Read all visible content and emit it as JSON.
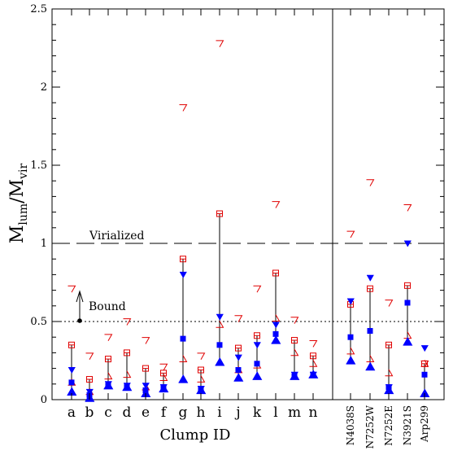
{
  "chart_data": {
    "type": "scatter",
    "xlabel": "Clump ID",
    "ylabel": {
      "main_1": "M",
      "sub_1": "lum",
      "slash": "/M",
      "sub_2": "vir"
    },
    "ylim": [
      0,
      2.5
    ],
    "yticks": [
      "0",
      "0.5",
      "1",
      "1.5",
      "2",
      "2.5"
    ],
    "categories": [
      "a",
      "b",
      "c",
      "d",
      "e",
      "f",
      "g",
      "h",
      "i",
      "j",
      "k",
      "l",
      "m",
      "n",
      "N4038S",
      "N7252W",
      "N7252E",
      "N3921S",
      "Arp299"
    ],
    "reference_lines": [
      {
        "label": "Virialized",
        "y": 1.0,
        "style": "dashed"
      },
      {
        "label": "Bound",
        "y": 0.5,
        "style": "dotted"
      }
    ],
    "colors": {
      "open_markers": "#e00000",
      "filled_markers": "#0000ff",
      "lines": "#000000"
    },
    "series": [
      {
        "marker": "open-down-triangle",
        "values": [
          0.71,
          0.28,
          0.4,
          0.5,
          0.38,
          0.21,
          1.87,
          0.28,
          2.28,
          0.52,
          0.71,
          1.25,
          0.51,
          0.36,
          1.06,
          1.39,
          0.62,
          1.23,
          0.23
        ]
      },
      {
        "marker": "open-square",
        "values": [
          0.35,
          0.13,
          0.26,
          0.3,
          0.2,
          0.17,
          0.9,
          0.19,
          1.19,
          0.33,
          0.41,
          0.81,
          0.38,
          0.28,
          0.61,
          0.71,
          0.35,
          0.73,
          0.23
        ]
      },
      {
        "marker": "open-up-triangle",
        "values": [
          0.11,
          0.05,
          0.15,
          0.16,
          0.08,
          0.14,
          0.26,
          0.13,
          0.48,
          0.19,
          0.22,
          0.52,
          0.3,
          0.23,
          0.31,
          0.26,
          0.17,
          0.41,
          0.23
        ]
      },
      {
        "marker": "filled-down-triangle",
        "values": [
          0.19,
          0.05,
          0.1,
          0.09,
          0.09,
          0.08,
          0.8,
          0.07,
          0.53,
          0.27,
          0.35,
          0.48,
          0.16,
          0.16,
          0.63,
          0.78,
          0.08,
          1.0,
          0.33
        ]
      },
      {
        "marker": "filled-square",
        "values": [
          0.11,
          0.03,
          0.09,
          0.08,
          0.06,
          0.08,
          0.39,
          0.07,
          0.35,
          0.19,
          0.23,
          0.42,
          0.15,
          0.16,
          0.4,
          0.44,
          0.08,
          0.62,
          0.16
        ]
      },
      {
        "marker": "filled-up-triangle",
        "values": [
          0.05,
          0.01,
          0.09,
          0.08,
          0.04,
          0.07,
          0.13,
          0.06,
          0.24,
          0.14,
          0.15,
          0.38,
          0.15,
          0.16,
          0.25,
          0.21,
          0.06,
          0.37,
          0.04
        ]
      }
    ]
  }
}
